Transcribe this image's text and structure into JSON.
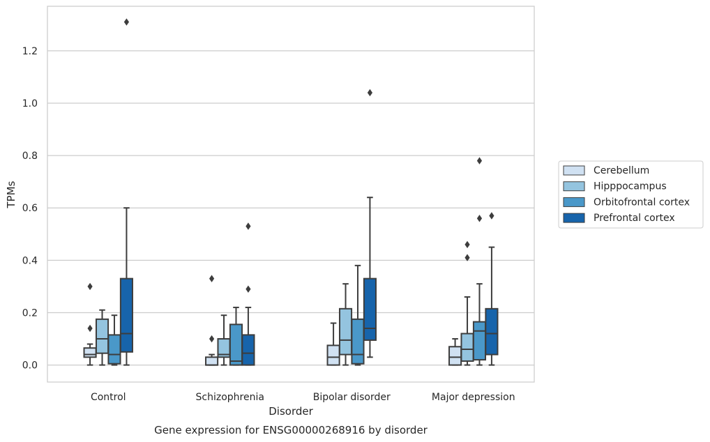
{
  "chart_data": {
    "type": "box",
    "caption": "Gene expression for ENSG00000268916 by disorder",
    "xlabel": "Disorder",
    "ylabel": "TPMs",
    "ylim": [
      -0.065,
      1.37
    ],
    "yticks": [
      0.0,
      0.2,
      0.4,
      0.6,
      0.8,
      1.0,
      1.2
    ],
    "ytick_labels": [
      "0.0",
      "0.2",
      "0.4",
      "0.6",
      "0.8",
      "1.0",
      "1.2"
    ],
    "categories": [
      "Control",
      "Schizophrenia",
      "Bipolar disorder",
      "Major depression"
    ],
    "grid": "horizontal",
    "legend_position": "right",
    "series": [
      {
        "name": "Cerebellum",
        "color": "#d0e1f2",
        "boxes": [
          {
            "whisker_low": 0.0,
            "q1": 0.03,
            "median": 0.04,
            "q3": 0.065,
            "whisker_high": 0.08,
            "outliers": [
              0.14,
              0.3
            ]
          },
          {
            "whisker_low": 0.0,
            "q1": 0.0,
            "median": 0.0,
            "q3": 0.03,
            "whisker_high": 0.04,
            "outliers": [
              0.1,
              0.33
            ]
          },
          {
            "whisker_low": 0.0,
            "q1": 0.0,
            "median": 0.03,
            "q3": 0.075,
            "whisker_high": 0.16,
            "outliers": []
          },
          {
            "whisker_low": 0.0,
            "q1": 0.0,
            "median": 0.03,
            "q3": 0.07,
            "whisker_high": 0.1,
            "outliers": []
          }
        ]
      },
      {
        "name": "Hipppocampus",
        "color": "#94c4df",
        "boxes": [
          {
            "whisker_low": 0.0,
            "q1": 0.045,
            "median": 0.1,
            "q3": 0.175,
            "whisker_high": 0.21,
            "outliers": []
          },
          {
            "whisker_low": 0.0,
            "q1": 0.03,
            "median": 0.04,
            "q3": 0.1,
            "whisker_high": 0.19,
            "outliers": []
          },
          {
            "whisker_low": 0.0,
            "q1": 0.04,
            "median": 0.095,
            "q3": 0.215,
            "whisker_high": 0.31,
            "outliers": []
          },
          {
            "whisker_low": 0.0,
            "q1": 0.015,
            "median": 0.06,
            "q3": 0.12,
            "whisker_high": 0.26,
            "outliers": [
              0.41,
              0.46
            ]
          }
        ]
      },
      {
        "name": "Orbitofrontal cortex",
        "color": "#4a98c9",
        "boxes": [
          {
            "whisker_low": 0.0,
            "q1": 0.005,
            "median": 0.04,
            "q3": 0.115,
            "whisker_high": 0.19,
            "outliers": []
          },
          {
            "whisker_low": 0.0,
            "q1": 0.0,
            "median": 0.015,
            "q3": 0.155,
            "whisker_high": 0.22,
            "outliers": []
          },
          {
            "whisker_low": 0.0,
            "q1": 0.005,
            "median": 0.04,
            "q3": 0.175,
            "whisker_high": 0.38,
            "outliers": []
          },
          {
            "whisker_low": 0.0,
            "q1": 0.02,
            "median": 0.13,
            "q3": 0.165,
            "whisker_high": 0.31,
            "outliers": [
              0.56,
              0.78
            ]
          }
        ]
      },
      {
        "name": "Prefrontal cortex",
        "color": "#1764ab",
        "boxes": [
          {
            "whisker_low": 0.0,
            "q1": 0.05,
            "median": 0.12,
            "q3": 0.33,
            "whisker_high": 0.6,
            "outliers": [
              1.31
            ]
          },
          {
            "whisker_low": 0.0,
            "q1": 0.0,
            "median": 0.045,
            "q3": 0.115,
            "whisker_high": 0.22,
            "outliers": [
              0.29,
              0.53
            ]
          },
          {
            "whisker_low": 0.03,
            "q1": 0.095,
            "median": 0.14,
            "q3": 0.33,
            "whisker_high": 0.64,
            "outliers": [
              1.04
            ]
          },
          {
            "whisker_low": 0.0,
            "q1": 0.04,
            "median": 0.12,
            "q3": 0.215,
            "whisker_high": 0.45,
            "outliers": [
              0.57
            ]
          }
        ]
      }
    ]
  }
}
